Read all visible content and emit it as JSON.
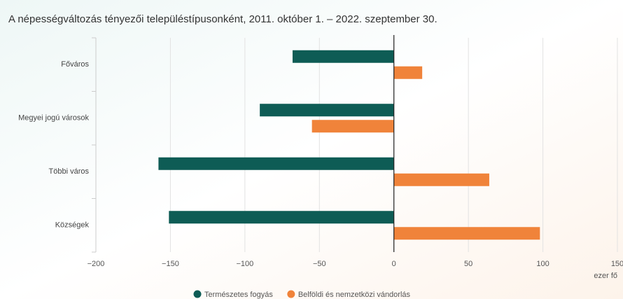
{
  "chart_data": {
    "type": "bar",
    "orientation": "horizontal",
    "title": "A népességváltozás tényezői településtípusonként, 2011. október 1. – 2022. szeptember 30.",
    "x_label": "ezer fő",
    "categories": [
      "Főváros",
      "Megyei jogú városok",
      "Többi város",
      "Községek"
    ],
    "series": [
      {
        "name": "Természetes fogyás",
        "color": "#0e5c55",
        "values": [
          -68,
          -90,
          -158,
          -151
        ]
      },
      {
        "name": "Belföldi és nemzetközi vándorlás",
        "color": "#f0833a",
        "values": [
          19,
          -55,
          64,
          98
        ]
      }
    ],
    "xlim": [
      -200,
      150
    ],
    "xticks": [
      {
        "value": -200,
        "label": "−200"
      },
      {
        "value": -150,
        "label": "−150"
      },
      {
        "value": -100,
        "label": "−100"
      },
      {
        "value": -50,
        "label": "−50"
      },
      0,
      50,
      100,
      150
    ],
    "grid": true
  }
}
